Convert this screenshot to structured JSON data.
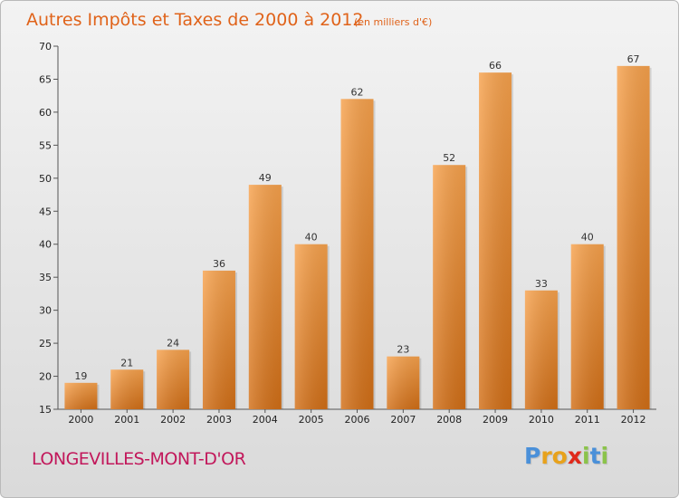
{
  "chart_data": {
    "type": "bar",
    "title": "Autres Impôts et Taxes de 2000 à 2012",
    "unit": "(en milliers d'€)",
    "categories": [
      "2000",
      "2001",
      "2002",
      "2003",
      "2004",
      "2005",
      "2006",
      "2007",
      "2008",
      "2009",
      "2010",
      "2011",
      "2012"
    ],
    "values": [
      19,
      21,
      24,
      36,
      49,
      40,
      62,
      23,
      52,
      66,
      33,
      40,
      67
    ],
    "ylim": [
      15,
      70
    ],
    "yticks": [
      15,
      20,
      25,
      30,
      35,
      40,
      45,
      50,
      55,
      60,
      65,
      70
    ],
    "grid": false,
    "bar_color": "#f0912e"
  },
  "footer": {
    "town": "LONGEVILLES-MONT-D'OR",
    "logo_letters": [
      "P",
      "r",
      "o",
      "x",
      "i",
      "t",
      "i"
    ],
    "logo_colors": [
      "#4a90d9",
      "#e8a21b",
      "#e8a21b",
      "#e0291b",
      "#8bc34a",
      "#4a90d9",
      "#8bc34a"
    ]
  }
}
